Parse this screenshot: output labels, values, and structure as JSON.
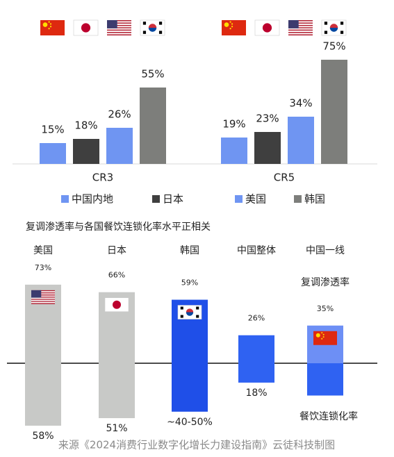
{
  "chart_data": [
    {
      "type": "bar",
      "categories": [
        "CR3",
        "CR5"
      ],
      "series": [
        {
          "name": "中国内地",
          "color": "#6f95f2",
          "values": [
            15,
            19
          ],
          "value_labels": [
            "15%",
            "19%"
          ]
        },
        {
          "name": "日本",
          "color": "#3f3f3f",
          "values": [
            18,
            23
          ],
          "value_labels": [
            "18%",
            "23%"
          ]
        },
        {
          "name": "美国",
          "color": "#6f95f2",
          "values": [
            26,
            34
          ],
          "value_labels": [
            "26%",
            "34%"
          ]
        },
        {
          "name": "韩国",
          "color": "#7d7e7b",
          "values": [
            55,
            75
          ],
          "value_labels": [
            "55%",
            "75%"
          ]
        }
      ]
    },
    {
      "type": "diverging",
      "title": "复调渗透率与各国餐饮连锁化率水平正相关",
      "categories": [
        "美国",
        "日本",
        "韩国",
        "中国整体",
        "中国一线"
      ],
      "series": [
        {
          "name": "复调渗透率",
          "colors": [
            "#c8c9c7",
            "#c8c9c7",
            "#1f4fe8",
            "#2f62f2",
            "#6d8ff5"
          ],
          "values": [
            73,
            66,
            59,
            26,
            35
          ],
          "value_labels": [
            "73%",
            "66%",
            "59%",
            "26%",
            "35%"
          ]
        },
        {
          "name": "餐饮连锁化率",
          "colors": [
            "#c8c9c7",
            "#c8c9c7",
            "#1f4fe8",
            "#2f62f2",
            "#2f62f2"
          ],
          "values": [
            58,
            51,
            45,
            18,
            30
          ],
          "value_labels": [
            "58%",
            "51%",
            "~40-50%",
            "18%",
            null
          ]
        }
      ],
      "source": "来源《2024消费行业数字化增长力建设指南》云徒科技制图"
    }
  ]
}
